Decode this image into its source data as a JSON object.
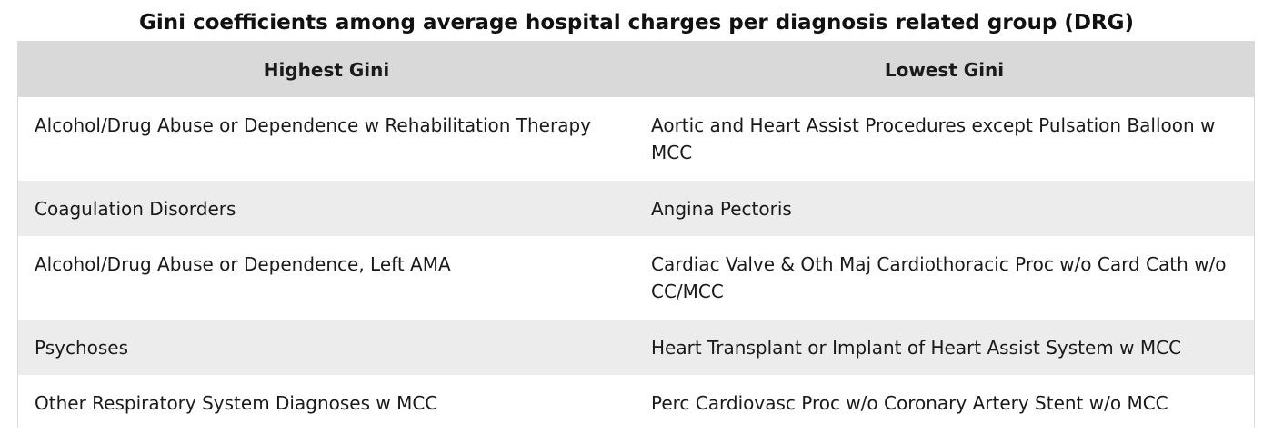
{
  "title": "Gini coefficients among average hospital charges per diagnosis related group (DRG)",
  "table": {
    "headers": [
      "Highest Gini",
      "Lowest Gini"
    ],
    "rows": [
      {
        "highest": "Alcohol/Drug Abuse or Dependence w Rehabilitation Therapy",
        "lowest": "Aortic and Heart Assist Procedures except Pulsation Balloon w MCC"
      },
      {
        "highest": "Coagulation Disorders",
        "lowest": "Angina Pectoris"
      },
      {
        "highest": "Alcohol/Drug Abuse or Dependence, Left AMA",
        "lowest": "Cardiac Valve & Oth Maj Cardiothoracic Proc w/o Card Cath w/o CC/MCC"
      },
      {
        "highest": "Psychoses",
        "lowest": "Heart Transplant or Implant of Heart Assist System w MCC"
      },
      {
        "highest": "Other Respiratory System Diagnoses w MCC",
        "lowest": "Perc Cardiovasc Proc w/o Coronary Artery Stent w/o MCC"
      }
    ]
  },
  "colors": {
    "header_background": "#d9d9d9",
    "stripe_background": "#ececec",
    "border": "#d9d9d9"
  }
}
